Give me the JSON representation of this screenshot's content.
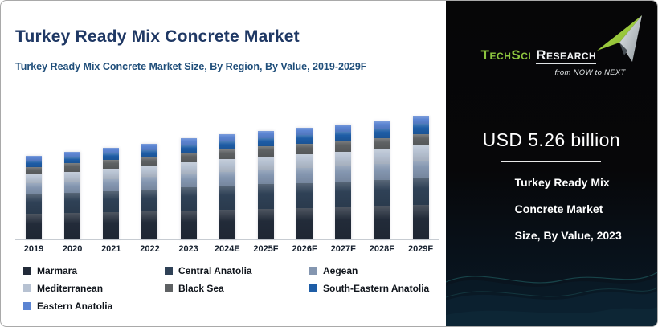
{
  "header": {
    "title": "Turkey Ready Mix Concrete Market",
    "subtitle": "Turkey Ready Mix Concrete Market Size, By Region, By Value, 2019-2029F"
  },
  "chart_data": {
    "type": "bar",
    "stacked": true,
    "title": "Turkey Ready Mix Concrete Market Size, By Region, By Value, 2019-2029F",
    "unit": "USD billion",
    "categories": [
      "2019",
      "2020",
      "2021",
      "2022",
      "2023",
      "2024E",
      "2025F",
      "2026F",
      "2027F",
      "2028F",
      "2029F"
    ],
    "series": [
      {
        "name": "Marmara",
        "color": "#222b39",
        "values": [
          1.33,
          1.37,
          1.41,
          1.45,
          1.5,
          1.55,
          1.59,
          1.63,
          1.68,
          1.72,
          1.78
        ]
      },
      {
        "name": "Central Anatolia",
        "color": "#2f4156",
        "values": [
          1.0,
          1.05,
          1.09,
          1.13,
          1.19,
          1.23,
          1.27,
          1.3,
          1.34,
          1.38,
          1.43
        ]
      },
      {
        "name": "Aegean",
        "color": "#8496b0",
        "values": [
          0.57,
          0.6,
          0.63,
          0.66,
          0.7,
          0.73,
          0.75,
          0.77,
          0.8,
          0.82,
          0.86
        ]
      },
      {
        "name": "Mediterranean",
        "color": "#b7c2d2",
        "values": [
          0.47,
          0.5,
          0.54,
          0.57,
          0.62,
          0.65,
          0.68,
          0.7,
          0.73,
          0.75,
          0.8
        ]
      },
      {
        "name": "Black Sea",
        "color": "#5e6163",
        "values": [
          0.4,
          0.42,
          0.44,
          0.46,
          0.49,
          0.51,
          0.53,
          0.55,
          0.57,
          0.58,
          0.61
        ]
      },
      {
        "name": "South-Eastern Anatolia",
        "color": "#1e5da6",
        "values": [
          0.3,
          0.32,
          0.34,
          0.36,
          0.39,
          0.41,
          0.43,
          0.45,
          0.47,
          0.49,
          0.52
        ]
      },
      {
        "name": "Eastern Anatolia",
        "color": "#5b84d2",
        "values": [
          0.28,
          0.29,
          0.31,
          0.33,
          0.37,
          0.37,
          0.38,
          0.38,
          0.38,
          0.38,
          0.4
        ]
      }
    ],
    "totals": [
      4.35,
      4.55,
      4.76,
      4.96,
      5.26,
      5.45,
      5.63,
      5.78,
      5.97,
      6.12,
      6.4
    ],
    "ylim": [
      0,
      6.8
    ],
    "grid": false,
    "value_axis_visible": false,
    "legend_position": "bottom"
  },
  "brand": {
    "name_primary": "TechSci",
    "name_secondary": "Research",
    "tagline": "from NOW to NEXT"
  },
  "panel": {
    "value": "USD 5.26 billion",
    "caption_line1": "Turkey Ready Mix",
    "caption_line2": "Concrete Market",
    "caption_line3": "Size, By Value, 2023"
  },
  "colors": {
    "title_text": "#1f3864",
    "subtitle_text": "#1f4e7a",
    "axis_label_text": "#16202e",
    "legend_text": "#10151c",
    "panel_background": "#070708",
    "panel_text": "#ffffff",
    "brand_green": "#8dc63f",
    "wave_teal": "#2b7c7c"
  }
}
